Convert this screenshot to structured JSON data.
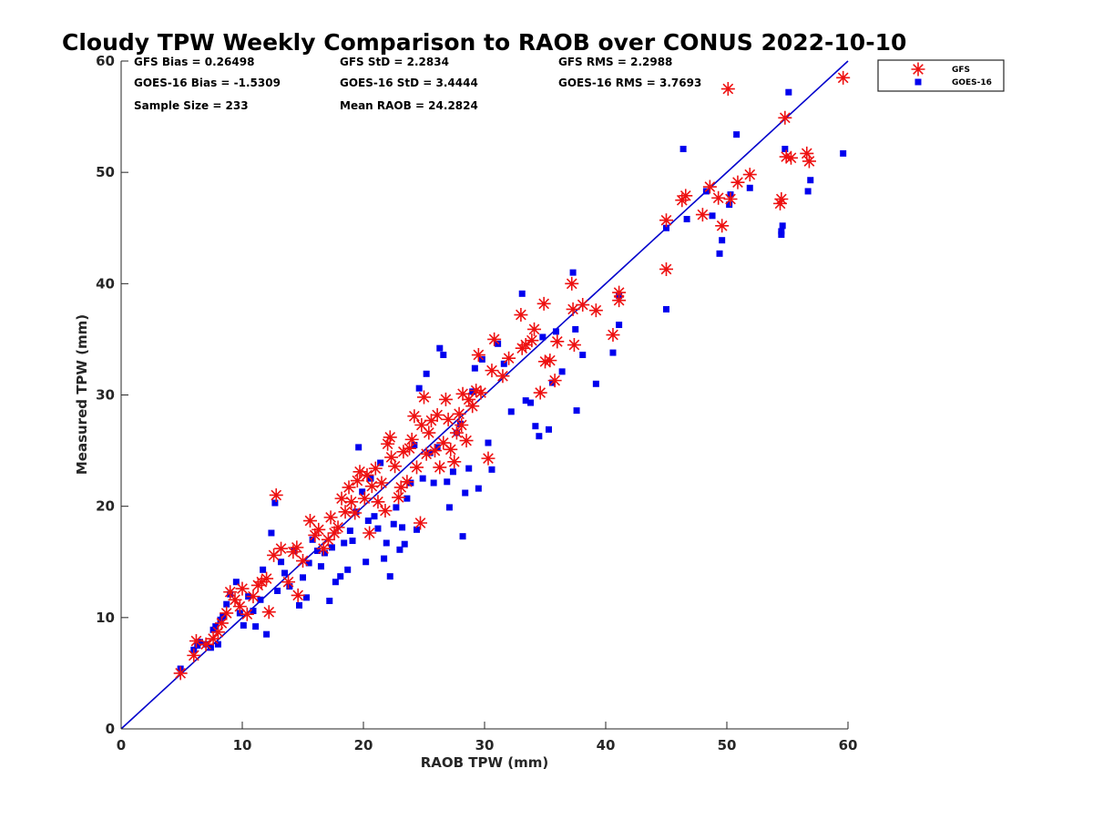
{
  "chart_data": {
    "type": "scatter",
    "title": "Cloudy TPW Weekly Comparison to RAOB over CONUS 2022-10-10",
    "xlabel": "RAOB TPW (mm)",
    "ylabel": "Measured TPW (mm)",
    "xlim": [
      0,
      60
    ],
    "ylim": [
      0,
      60
    ],
    "xticks": [
      "0",
      "10",
      "20",
      "30",
      "40",
      "50",
      "60"
    ],
    "yticks": [
      "0",
      "10",
      "20",
      "30",
      "40",
      "50",
      "60"
    ],
    "grid": false,
    "legend_position": "outside-top-right",
    "stats": [
      [
        "GFS Bias = 0.26498",
        "GFS StD = 2.2834",
        "GFS RMS = 2.2988"
      ],
      [
        "GOES-16 Bias = -1.5309",
        "GOES-16 StD = 3.4444",
        "GOES-16 RMS = 3.7693"
      ],
      [
        "Sample Size = 233",
        "Mean RAOB = 24.2824",
        ""
      ]
    ],
    "reference_line": {
      "from": [
        0,
        0
      ],
      "to": [
        60,
        60
      ],
      "color": "#0000cc"
    },
    "series": [
      {
        "name": "GFS",
        "marker": "asterisk",
        "color": "#ee1111",
        "points": [
          [
            4.9,
            5.0
          ],
          [
            6.0,
            6.6
          ],
          [
            6.2,
            7.9
          ],
          [
            7.0,
            7.6
          ],
          [
            7.6,
            8.1
          ],
          [
            8.0,
            8.7
          ],
          [
            8.3,
            9.5
          ],
          [
            8.7,
            10.4
          ],
          [
            9.0,
            12.3
          ],
          [
            9.4,
            11.6
          ],
          [
            9.8,
            11.0
          ],
          [
            10.0,
            12.6
          ],
          [
            10.4,
            10.3
          ],
          [
            10.9,
            11.9
          ],
          [
            11.3,
            12.9
          ],
          [
            11.6,
            13.2
          ],
          [
            12.0,
            13.5
          ],
          [
            12.2,
            10.5
          ],
          [
            12.6,
            15.6
          ],
          [
            12.8,
            21.0
          ],
          [
            13.2,
            16.2
          ],
          [
            13.8,
            13.2
          ],
          [
            14.2,
            15.9
          ],
          [
            14.5,
            16.3
          ],
          [
            14.6,
            12.0
          ],
          [
            15.0,
            15.1
          ],
          [
            15.6,
            18.7
          ],
          [
            16.0,
            17.4
          ],
          [
            16.3,
            17.9
          ],
          [
            16.7,
            16.2
          ],
          [
            17.1,
            17.0
          ],
          [
            17.3,
            19.0
          ],
          [
            17.6,
            17.6
          ],
          [
            17.9,
            18.1
          ],
          [
            18.2,
            20.7
          ],
          [
            18.5,
            19.5
          ],
          [
            18.8,
            21.7
          ],
          [
            19.0,
            20.4
          ],
          [
            19.3,
            19.4
          ],
          [
            19.5,
            22.3
          ],
          [
            19.7,
            23.1
          ],
          [
            20.1,
            20.7
          ],
          [
            20.3,
            22.8
          ],
          [
            20.5,
            17.6
          ],
          [
            20.7,
            21.8
          ],
          [
            21.0,
            23.4
          ],
          [
            21.2,
            20.4
          ],
          [
            21.5,
            22.1
          ],
          [
            21.8,
            19.6
          ],
          [
            22.0,
            25.6
          ],
          [
            22.2,
            26.2
          ],
          [
            22.3,
            24.4
          ],
          [
            22.6,
            23.6
          ],
          [
            22.9,
            20.8
          ],
          [
            23.1,
            21.7
          ],
          [
            23.3,
            24.9
          ],
          [
            23.6,
            22.2
          ],
          [
            23.8,
            25.2
          ],
          [
            24.0,
            26.0
          ],
          [
            24.2,
            28.1
          ],
          [
            24.4,
            23.5
          ],
          [
            24.7,
            18.5
          ],
          [
            24.8,
            27.3
          ],
          [
            25.0,
            29.8
          ],
          [
            25.2,
            24.7
          ],
          [
            25.4,
            26.6
          ],
          [
            25.6,
            27.7
          ],
          [
            25.9,
            25.0
          ],
          [
            26.1,
            28.2
          ],
          [
            26.3,
            23.5
          ],
          [
            26.6,
            25.7
          ],
          [
            26.8,
            29.6
          ],
          [
            27.0,
            27.8
          ],
          [
            27.2,
            25.1
          ],
          [
            27.5,
            24.0
          ],
          [
            27.7,
            26.6
          ],
          [
            27.9,
            28.3
          ],
          [
            28.1,
            27.3
          ],
          [
            28.2,
            30.1
          ],
          [
            28.5,
            25.9
          ],
          [
            28.7,
            29.6
          ],
          [
            29.0,
            29.0
          ],
          [
            29.3,
            30.4
          ],
          [
            29.5,
            33.6
          ],
          [
            29.7,
            30.2
          ],
          [
            30.3,
            24.3
          ],
          [
            30.6,
            32.2
          ],
          [
            30.8,
            35.0
          ],
          [
            31.5,
            31.7
          ],
          [
            32.0,
            33.3
          ],
          [
            33.0,
            37.2
          ],
          [
            33.1,
            34.2
          ],
          [
            33.4,
            34.5
          ],
          [
            33.9,
            34.9
          ],
          [
            34.1,
            35.9
          ],
          [
            34.6,
            30.2
          ],
          [
            34.9,
            38.2
          ],
          [
            35.0,
            33.0
          ],
          [
            35.4,
            33.1
          ],
          [
            35.8,
            31.3
          ],
          [
            36.0,
            34.8
          ],
          [
            37.2,
            40.0
          ],
          [
            37.3,
            37.7
          ],
          [
            37.4,
            34.5
          ],
          [
            38.1,
            38.1
          ],
          [
            39.2,
            37.6
          ],
          [
            40.6,
            35.4
          ],
          [
            41.1,
            38.5
          ],
          [
            41.1,
            39.2
          ],
          [
            45.0,
            45.7
          ],
          [
            45.0,
            41.3
          ],
          [
            46.3,
            47.5
          ],
          [
            46.6,
            47.9
          ],
          [
            48.0,
            46.2
          ],
          [
            48.6,
            48.7
          ],
          [
            49.3,
            47.7
          ],
          [
            49.6,
            45.2
          ],
          [
            50.1,
            57.5
          ],
          [
            50.3,
            47.6
          ],
          [
            50.9,
            49.1
          ],
          [
            51.9,
            49.8
          ],
          [
            54.4,
            47.2
          ],
          [
            54.5,
            47.6
          ],
          [
            54.8,
            54.9
          ],
          [
            54.9,
            51.4
          ],
          [
            55.3,
            51.3
          ],
          [
            56.6,
            51.7
          ],
          [
            56.8,
            51.0
          ],
          [
            59.6,
            58.5
          ]
        ]
      },
      {
        "name": "GOES-16",
        "marker": "square",
        "color": "#0000ee",
        "points": [
          [
            4.9,
            5.4
          ],
          [
            6.0,
            7.1
          ],
          [
            6.3,
            7.5
          ],
          [
            6.5,
            7.8
          ],
          [
            7.0,
            7.6
          ],
          [
            7.4,
            7.3
          ],
          [
            7.6,
            8.9
          ],
          [
            7.8,
            9.2
          ],
          [
            8.0,
            7.6
          ],
          [
            8.2,
            9.8
          ],
          [
            8.4,
            10.1
          ],
          [
            8.7,
            11.2
          ],
          [
            9.0,
            12.1
          ],
          [
            9.5,
            13.2
          ],
          [
            9.8,
            10.4
          ],
          [
            10.1,
            9.3
          ],
          [
            10.5,
            11.9
          ],
          [
            10.9,
            10.6
          ],
          [
            11.1,
            9.2
          ],
          [
            11.5,
            11.6
          ],
          [
            11.7,
            14.3
          ],
          [
            12.0,
            8.5
          ],
          [
            12.4,
            17.6
          ],
          [
            12.7,
            20.3
          ],
          [
            12.9,
            12.4
          ],
          [
            13.2,
            15.0
          ],
          [
            13.5,
            14.0
          ],
          [
            13.9,
            12.8
          ],
          [
            14.3,
            16.0
          ],
          [
            14.7,
            11.1
          ],
          [
            15.0,
            13.6
          ],
          [
            15.3,
            11.8
          ],
          [
            15.5,
            14.9
          ],
          [
            15.8,
            17.0
          ],
          [
            16.2,
            16.0
          ],
          [
            16.5,
            14.6
          ],
          [
            16.8,
            15.8
          ],
          [
            17.2,
            11.5
          ],
          [
            17.4,
            16.3
          ],
          [
            17.7,
            13.2
          ],
          [
            18.1,
            13.7
          ],
          [
            18.4,
            16.7
          ],
          [
            18.7,
            14.3
          ],
          [
            18.9,
            17.8
          ],
          [
            19.1,
            16.9
          ],
          [
            19.4,
            19.5
          ],
          [
            19.6,
            25.3
          ],
          [
            19.9,
            21.3
          ],
          [
            20.2,
            15.0
          ],
          [
            20.4,
            18.7
          ],
          [
            20.6,
            22.5
          ],
          [
            20.9,
            19.1
          ],
          [
            21.2,
            18.0
          ],
          [
            21.4,
            23.9
          ],
          [
            21.7,
            15.3
          ],
          [
            21.9,
            16.7
          ],
          [
            22.2,
            13.7
          ],
          [
            22.5,
            18.4
          ],
          [
            22.7,
            19.9
          ],
          [
            23.0,
            16.1
          ],
          [
            23.2,
            18.1
          ],
          [
            23.4,
            16.6
          ],
          [
            23.6,
            20.7
          ],
          [
            23.9,
            22.1
          ],
          [
            24.2,
            25.5
          ],
          [
            24.4,
            17.9
          ],
          [
            24.6,
            30.6
          ],
          [
            24.9,
            22.5
          ],
          [
            25.2,
            31.9
          ],
          [
            25.5,
            24.8
          ],
          [
            25.8,
            22.1
          ],
          [
            26.1,
            25.3
          ],
          [
            26.3,
            34.2
          ],
          [
            26.6,
            33.6
          ],
          [
            26.9,
            22.2
          ],
          [
            27.1,
            19.9
          ],
          [
            27.4,
            23.1
          ],
          [
            27.7,
            26.6
          ],
          [
            28.0,
            27.4
          ],
          [
            28.2,
            17.3
          ],
          [
            28.4,
            21.2
          ],
          [
            28.7,
            23.4
          ],
          [
            29.0,
            30.3
          ],
          [
            29.2,
            32.4
          ],
          [
            29.5,
            21.6
          ],
          [
            29.8,
            33.2
          ],
          [
            30.3,
            25.7
          ],
          [
            30.6,
            23.3
          ],
          [
            31.1,
            34.6
          ],
          [
            31.6,
            32.8
          ],
          [
            32.2,
            28.5
          ],
          [
            33.1,
            39.1
          ],
          [
            33.4,
            29.5
          ],
          [
            33.8,
            29.3
          ],
          [
            34.2,
            27.2
          ],
          [
            34.5,
            26.3
          ],
          [
            34.8,
            35.2
          ],
          [
            35.3,
            26.9
          ],
          [
            35.6,
            31.1
          ],
          [
            35.9,
            35.7
          ],
          [
            36.4,
            32.1
          ],
          [
            37.3,
            41.0
          ],
          [
            37.5,
            35.9
          ],
          [
            37.6,
            28.6
          ],
          [
            38.1,
            33.6
          ],
          [
            39.2,
            31.0
          ],
          [
            40.6,
            33.8
          ],
          [
            41.1,
            36.3
          ],
          [
            41.1,
            38.9
          ],
          [
            45.0,
            37.7
          ],
          [
            45.0,
            45.0
          ],
          [
            46.4,
            52.1
          ],
          [
            46.7,
            45.8
          ],
          [
            48.3,
            48.3
          ],
          [
            48.8,
            46.1
          ],
          [
            49.4,
            42.7
          ],
          [
            49.6,
            43.9
          ],
          [
            50.2,
            47.1
          ],
          [
            50.3,
            48.0
          ],
          [
            50.8,
            53.4
          ],
          [
            51.9,
            48.6
          ],
          [
            54.5,
            44.4
          ],
          [
            54.5,
            44.7
          ],
          [
            54.6,
            45.2
          ],
          [
            54.8,
            52.1
          ],
          [
            55.1,
            57.2
          ],
          [
            56.7,
            48.3
          ],
          [
            56.9,
            49.3
          ],
          [
            59.6,
            51.7
          ]
        ]
      }
    ]
  }
}
